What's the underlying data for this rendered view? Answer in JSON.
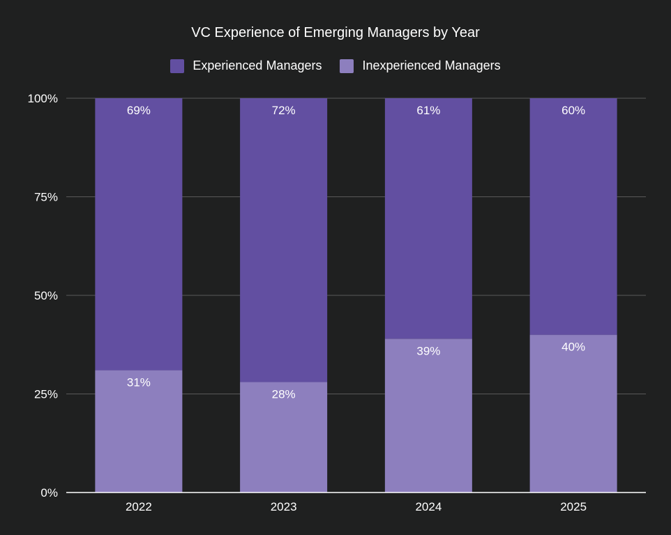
{
  "chart_data": {
    "type": "bar",
    "stacked": true,
    "title": "VC Experience of Emerging Managers by Year",
    "categories": [
      "2022",
      "2023",
      "2024",
      "2025"
    ],
    "series": [
      {
        "name": "Inexperienced Managers",
        "color": "#8d7fbe",
        "values": [
          31,
          28,
          39,
          40
        ],
        "labels": [
          "31%",
          "28%",
          "39%",
          "40%"
        ]
      },
      {
        "name": "Experienced Managers",
        "color": "#624fa1",
        "values": [
          69,
          72,
          61,
          60
        ],
        "labels": [
          "69%",
          "72%",
          "61%",
          "60%"
        ]
      }
    ],
    "legend_order": [
      "Experienced Managers",
      "Inexperienced Managers"
    ],
    "legend_position": "top",
    "ylim": [
      0,
      100
    ],
    "yticks": [
      {
        "value": 0,
        "label": "0%"
      },
      {
        "value": 25,
        "label": "25%"
      },
      {
        "value": 50,
        "label": "50%"
      },
      {
        "value": 75,
        "label": "75%"
      },
      {
        "value": 100,
        "label": "100%"
      }
    ],
    "grid": true,
    "colors": {
      "background": "#1f2020",
      "grid": "#5a5a5a",
      "axis": "#ffffff",
      "text": "#ffffff"
    }
  }
}
